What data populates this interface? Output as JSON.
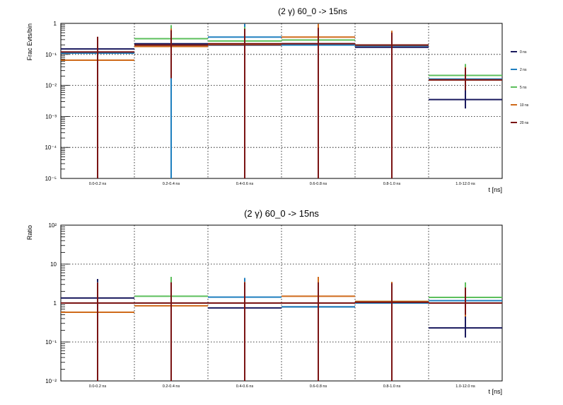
{
  "chart_data": [
    {
      "type": "line",
      "title": "(2 γ) 60_0 -> 15ns",
      "ylabel": "Frac Evts/bin",
      "xlabel": "t [ns]",
      "y_scale": "log",
      "ylim": [
        1e-05,
        1
      ],
      "y_ticks": [
        {
          "value": 1,
          "label": "1"
        },
        {
          "value": 0.1,
          "label": "10⁻¹"
        },
        {
          "value": 0.01,
          "label": "10⁻²"
        },
        {
          "value": 0.001,
          "label": "10⁻³"
        },
        {
          "value": 0.0001,
          "label": "10⁻⁴"
        },
        {
          "value": 1e-05,
          "label": "10⁻⁵"
        }
      ],
      "grid": true,
      "legend": "right",
      "categories": [
        "0.0-0.2 ns",
        "0.2-0.4 ns",
        "0.4-0.6 ns",
        "0.6-0.8 ns",
        "0.8-1.0 ns",
        "1.0-12.0 ns"
      ],
      "series": [
        {
          "name": "0 ns",
          "color": "#1a1a5e",
          "values": [
            0.15,
            0.22,
            0.2,
            0.22,
            0.17,
            0.0035
          ],
          "err_lo": [
            0.02,
            0.2,
            0.2,
            0.22,
            0.17,
            0.0017
          ],
          "err_hi": [
            0.15,
            0.3,
            0.42,
            0.36,
            0.2,
            0.005
          ]
        },
        {
          "name": "2 ns",
          "color": "#1f7fbf",
          "values": [
            0.11,
            0.2,
            0.36,
            0.2,
            0.19,
            0.016
          ],
          "err_lo": [
            0.11,
            0.2,
            0.36,
            0.2,
            0.19,
            0.008
          ],
          "err_hi": [
            0.2,
            0.4,
            0.6,
            0.45,
            0.3,
            0.024
          ]
        },
        {
          "name": "5 ns",
          "color": "#5cbf5c",
          "values": [
            0.065,
            0.32,
            0.27,
            0.29,
            0.2,
            0.021
          ],
          "err_lo": [
            0.06,
            0.3,
            0.27,
            0.29,
            0.18,
            0.012
          ],
          "err_hi": [
            0.2,
            0.56,
            0.5,
            0.55,
            0.35,
            0.028
          ]
        },
        {
          "name": "10 ns",
          "color": "#cf6a1a",
          "values": [
            0.065,
            0.18,
            0.21,
            0.36,
            0.2,
            0.015
          ],
          "err_lo": [
            0.061,
            0.16,
            0.21,
            0.36,
            0.17,
            0.008
          ],
          "err_hi": [
            0.2,
            0.5,
            0.45,
            0.6,
            0.38,
            0.024
          ]
        },
        {
          "name": "20 ns",
          "color": "#7a1414",
          "values": [
            0.12,
            0.2,
            0.22,
            0.22,
            0.2,
            0.015
          ],
          "err_lo": [
            0.12,
            0.183,
            0.22,
            0.22,
            0.2,
            0.008
          ],
          "err_hi": [
            0.25,
            0.4,
            0.45,
            0.5,
            0.3,
            0.022
          ]
        }
      ]
    },
    {
      "type": "line",
      "title": "(2 γ) 60_0 -> 15ns",
      "ylabel": "Ratio",
      "xlabel": "t [ns]",
      "y_scale": "log",
      "ylim": [
        0.01,
        100
      ],
      "y_ticks": [
        {
          "value": 100,
          "label": "10²"
        },
        {
          "value": 10,
          "label": "10"
        },
        {
          "value": 1,
          "label": "1"
        },
        {
          "value": 0.1,
          "label": "10⁻¹"
        },
        {
          "value": 0.01,
          "label": "10⁻²"
        }
      ],
      "grid": true,
      "categories": [
        "0.0-0.2 ns",
        "0.2-0.4 ns",
        "0.4-0.6 ns",
        "0.6-0.8 ns",
        "0.8-1.0 ns",
        "1.0-12.0 ns"
      ],
      "series": [
        {
          "name": "0 ns",
          "color": "#1a1a5e",
          "values": [
            1.35,
            1.0,
            0.75,
            0.8,
            1.0,
            0.23
          ],
          "err_lo": [
            1.34,
            0.99,
            0.74,
            0.79,
            0.99,
            0.1
          ],
          "err_hi": [
            2.8,
            2.2,
            2.0,
            2.4,
            1.6,
            0.4
          ]
        },
        {
          "name": "2 ns",
          "color": "#1f7fbf",
          "values": [
            1.0,
            1.0,
            1.42,
            0.8,
            1.0,
            1.15
          ],
          "err_lo": [
            0.99,
            0.99,
            1.41,
            0.79,
            0.99,
            0.6
          ],
          "err_hi": [
            2.5,
            2.3,
            3.0,
            2.5,
            2.2,
            1.6
          ]
        },
        {
          "name": "5 ns",
          "color": "#5cbf5c",
          "values": [
            0.58,
            1.5,
            1.0,
            1.0,
            1.1,
            1.4
          ],
          "err_lo": [
            0.57,
            1.49,
            0.99,
            0.99,
            1.09,
            0.8
          ],
          "err_hi": [
            2.0,
            3.2,
            2.5,
            2.8,
            2.4,
            2.0
          ]
        },
        {
          "name": "10 ns",
          "color": "#cf6a1a",
          "values": [
            0.58,
            0.85,
            1.0,
            1.5,
            1.1,
            1.0
          ],
          "err_lo": [
            0.57,
            0.84,
            0.99,
            1.49,
            1.09,
            0.55
          ],
          "err_hi": [
            2.0,
            2.5,
            2.5,
            3.2,
            2.4,
            1.5
          ]
        },
        {
          "name": "20 ns",
          "color": "#7a1414",
          "values": [
            1.0,
            1.0,
            1.0,
            1.0,
            1.05,
            1.0
          ],
          "err_lo": [
            0.99,
            0.99,
            0.99,
            0.99,
            1.04,
            0.5
          ],
          "err_hi": [
            2.4,
            2.4,
            2.4,
            2.4,
            2.2,
            1.5
          ]
        }
      ]
    }
  ]
}
